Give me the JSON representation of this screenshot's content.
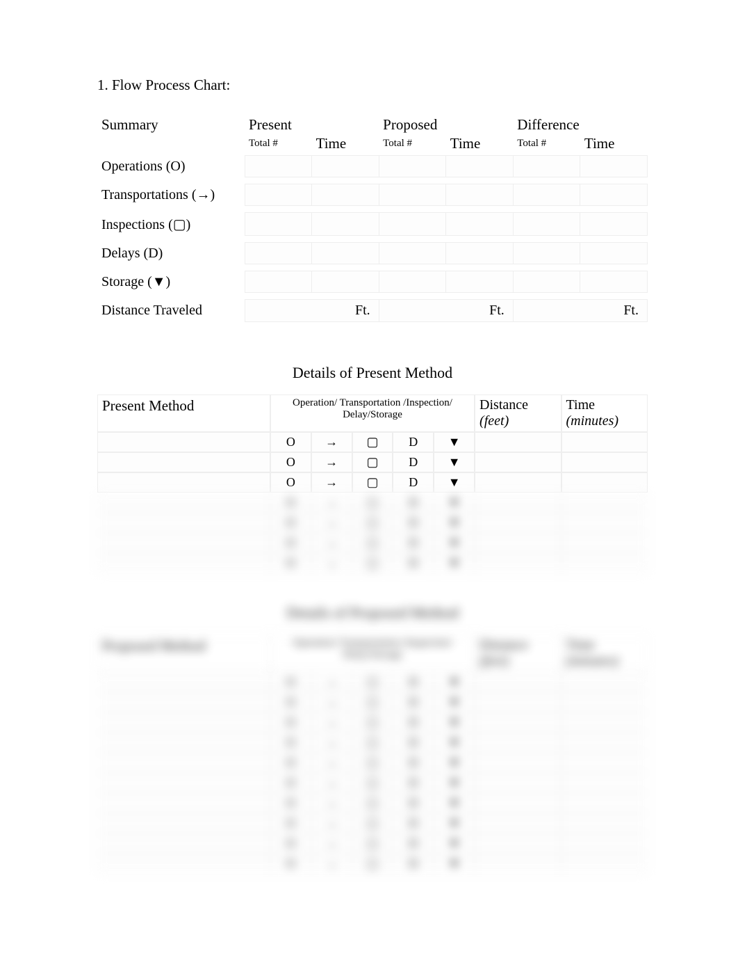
{
  "title": "1. Flow Process Chart:",
  "summary": {
    "header": "Summary",
    "groups": [
      {
        "label": "Present",
        "sub1": "Total #",
        "sub2": "Time"
      },
      {
        "label": "Proposed",
        "sub1": "Total #",
        "sub2": "Time"
      },
      {
        "label": "Difference",
        "sub1": "Total #",
        "sub2": "Time"
      }
    ],
    "rows": [
      "Operations (O)",
      "Transportations (→)",
      "Inspections (▢)",
      "Delays (D)",
      "Storage (▼)"
    ],
    "distance_label": "Distance Traveled",
    "distance_unit": "Ft."
  },
  "present_section_title": "Details of Present Method",
  "present": {
    "col_method": "Present Method",
    "col_symbols": "Operation/ Transportation /Inspection/ Delay/Storage",
    "col_distance": "Distance",
    "col_distance_unit": "(feet)",
    "col_time": "Time",
    "col_time_unit": "(minutes)",
    "symbol_o": "O",
    "symbol_arrow": "→",
    "symbol_square": "▢",
    "symbol_d": "D",
    "symbol_storage": "▼",
    "visible_rows": 3,
    "blurred_rows": 4
  },
  "proposed_section_title": "Details of Proposed Method",
  "proposed": {
    "col_method": "Proposed Method",
    "col_symbols": "Operation/ Transportation /Inspection/ Delay/Storage",
    "col_distance": "Distance",
    "col_distance_unit": "(feet)",
    "col_time": "Time",
    "col_time_unit": "(minutes)",
    "rows": 10
  },
  "colors": {
    "border": "#eeeeee",
    "cell_bg": "#fdfdfd",
    "text": "#000000"
  }
}
